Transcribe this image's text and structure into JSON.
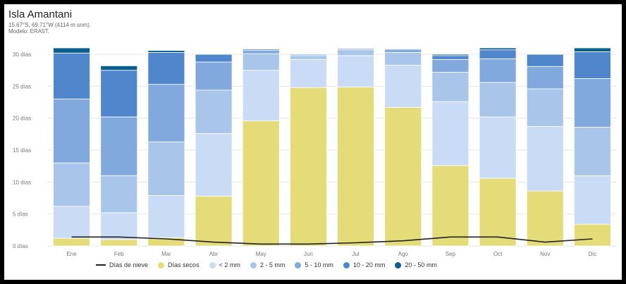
{
  "header": {
    "title": "Isla Amantani",
    "coords": "15.67°S, 69.71°W (4114 m snm).",
    "model": "Modelo: ERA5T."
  },
  "chart_data": {
    "type": "bar",
    "stacked": true,
    "categories": [
      "Ene",
      "Feb",
      "Mar",
      "Abr",
      "May",
      "Jun",
      "Jul",
      "Ago",
      "Sep",
      "Oct",
      "Nov",
      "Dic"
    ],
    "y_tick_labels": [
      "0 días",
      "5 días",
      "10 días",
      "15 días",
      "20 días",
      "25 días",
      "30 días"
    ],
    "ylim": [
      0,
      31
    ],
    "grid": true,
    "legend_position": "bottom",
    "series": [
      {
        "name": "Días secos",
        "color": "#e3dc79",
        "values": [
          1.2,
          1.0,
          1.3,
          7.8,
          19.6,
          24.8,
          24.9,
          21.7,
          12.6,
          10.6,
          8.6,
          3.4
        ]
      },
      {
        "name": "< 2 mm",
        "color": "#cadcf5",
        "values": [
          5.0,
          4.2,
          6.6,
          9.8,
          7.9,
          4.4,
          4.9,
          6.6,
          10.0,
          9.6,
          10.1,
          7.6
        ]
      },
      {
        "name": "2 - 5 mm",
        "color": "#a9c5ea",
        "values": [
          6.8,
          5.8,
          8.4,
          6.8,
          2.6,
          0.6,
          0.9,
          2.0,
          4.6,
          5.4,
          5.9,
          7.6
        ]
      },
      {
        "name": "5 - 10 mm",
        "color": "#81a9de",
        "values": [
          10.0,
          9.2,
          9.0,
          4.4,
          0.5,
          0.2,
          0.2,
          0.5,
          2.0,
          3.7,
          3.5,
          7.6
        ]
      },
      {
        "name": "10 - 20 mm",
        "color": "#4f86cc",
        "values": [
          7.2,
          7.3,
          5.0,
          1.2,
          0.2,
          0.0,
          0.0,
          0.1,
          0.6,
          1.4,
          1.9,
          4.2
        ]
      },
      {
        "name": "20 - 50 mm",
        "color": "#0a5e8e",
        "values": [
          0.8,
          0.7,
          0.3,
          0.0,
          0.0,
          0.0,
          0.0,
          0.0,
          0.2,
          0.3,
          0.0,
          0.6
        ]
      }
    ],
    "line_series": {
      "name": "Días de nieve",
      "color": "#222222",
      "values": [
        1.4,
        1.4,
        1.1,
        0.6,
        0.3,
        0.3,
        0.5,
        0.8,
        1.4,
        1.4,
        0.6,
        1.1
      ]
    }
  }
}
